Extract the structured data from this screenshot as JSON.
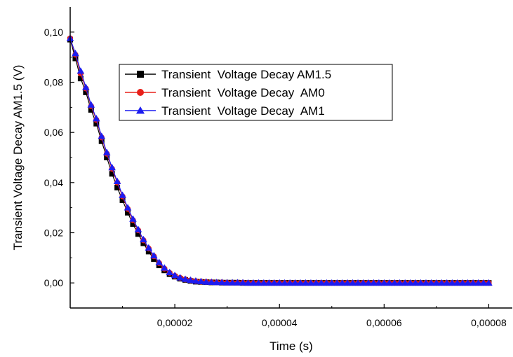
{
  "chart_data": {
    "type": "line",
    "title": "",
    "xlabel": "Time (s)",
    "ylabel": "Transient Voltage Decay AM1.5 (V)",
    "xlim": [
      0,
      8.45e-05
    ],
    "ylim": [
      -0.01,
      0.11
    ],
    "x_ticks": [
      {
        "value": 2e-05,
        "label": "0,00002"
      },
      {
        "value": 4e-05,
        "label": "0,00004"
      },
      {
        "value": 6e-05,
        "label": "0,00006"
      },
      {
        "value": 8e-05,
        "label": "0,00008"
      }
    ],
    "y_ticks": [
      {
        "value": 0.0,
        "label": "0,00"
      },
      {
        "value": 0.02,
        "label": "0,02"
      },
      {
        "value": 0.04,
        "label": "0,04"
      },
      {
        "value": 0.06,
        "label": "0,06"
      },
      {
        "value": 0.08,
        "label": "0,08"
      },
      {
        "value": 0.1,
        "label": "0,10"
      }
    ],
    "grid": false,
    "legend_position": "top-center",
    "series": [
      {
        "name": "Transient  Voltage Decay AM1.5",
        "color": "#000000",
        "marker": "square",
        "x": [
          0.0,
          1e-06,
          2e-06,
          3e-06,
          4e-06,
          5e-06,
          6e-06,
          7e-06,
          8e-06,
          9e-06,
          1e-05,
          1.1e-05,
          1.2e-05,
          1.3e-05,
          1.4e-05,
          1.5e-05,
          1.6e-05,
          1.7e-05,
          1.8e-05,
          1.9e-05,
          2e-05,
          2.1e-05,
          2.2e-05,
          2.3e-05,
          2.4e-05,
          2.5e-05,
          2.6e-05,
          2.7e-05,
          2.8e-05,
          2.9e-05,
          3e-05,
          3.1e-05,
          3.2e-05,
          3.3e-05,
          3.4e-05,
          3.5e-05,
          3.6e-05,
          3.7e-05,
          3.8e-05,
          3.9e-05,
          4e-05,
          4.1e-05,
          4.2e-05,
          4.3e-05,
          4.4e-05,
          4.5e-05,
          4.6e-05,
          4.7e-05,
          4.8e-05,
          4.9e-05,
          5e-05,
          5.1e-05,
          5.2e-05,
          5.3e-05,
          5.4e-05,
          5.5e-05,
          5.6e-05,
          5.7e-05,
          5.8e-05,
          5.9e-05,
          6e-05,
          6.1e-05,
          6.2e-05,
          6.3e-05,
          6.4e-05,
          6.5e-05,
          6.6e-05,
          6.7e-05,
          6.8e-05,
          6.9e-05,
          7e-05,
          7.1e-05,
          7.2e-05,
          7.3e-05,
          7.4e-05,
          7.5e-05,
          7.6e-05,
          7.7e-05,
          7.8e-05,
          7.9e-05,
          8e-05
        ],
        "y": [
          0.097,
          0.0895,
          0.0815,
          0.076,
          0.069,
          0.0635,
          0.0565,
          0.05,
          0.0435,
          0.038,
          0.033,
          0.028,
          0.0235,
          0.0195,
          0.0158,
          0.0125,
          0.0095,
          0.007,
          0.005,
          0.0035,
          0.0025,
          0.0017,
          0.0012,
          0.0008,
          0.0005,
          0.0004,
          0.0003,
          0.0002,
          0.0002,
          0.0001,
          0.0001,
          0.0001,
          0.0001,
          0.0,
          0.0,
          0.0,
          0.0,
          0.0,
          0.0,
          0.0,
          0.0,
          0.0,
          0.0,
          0.0,
          0.0,
          0.0,
          0.0,
          0.0,
          0.0,
          0.0,
          0.0,
          0.0,
          0.0,
          0.0,
          0.0,
          0.0,
          0.0,
          0.0,
          0.0,
          0.0,
          0.0,
          0.0,
          0.0,
          0.0,
          0.0,
          0.0,
          0.0,
          0.0,
          0.0,
          0.0,
          0.0,
          0.0,
          0.0,
          0.0,
          0.0,
          0.0,
          0.0,
          0.0,
          0.0,
          0.0,
          0.0
        ]
      },
      {
        "name": "Transient  Voltage Decay  AM0",
        "color": "#e8201a",
        "marker": "circle",
        "x": [
          0.0,
          1e-06,
          2e-06,
          3e-06,
          4e-06,
          5e-06,
          6e-06,
          7e-06,
          8e-06,
          9e-06,
          1e-05,
          1.1e-05,
          1.2e-05,
          1.3e-05,
          1.4e-05,
          1.5e-05,
          1.6e-05,
          1.7e-05,
          1.8e-05,
          1.9e-05,
          2e-05,
          2.1e-05,
          2.2e-05,
          2.3e-05,
          2.4e-05,
          2.5e-05,
          2.6e-05,
          2.7e-05,
          2.8e-05,
          2.9e-05,
          3e-05,
          3.1e-05,
          3.2e-05,
          3.3e-05,
          3.4e-05,
          3.5e-05,
          3.6e-05,
          3.7e-05,
          3.8e-05,
          3.9e-05,
          4e-05,
          4.1e-05,
          4.2e-05,
          4.3e-05,
          4.4e-05,
          4.5e-05,
          4.6e-05,
          4.7e-05,
          4.8e-05,
          4.9e-05,
          5e-05,
          5.1e-05,
          5.2e-05,
          5.3e-05,
          5.4e-05,
          5.5e-05,
          5.6e-05,
          5.7e-05,
          5.8e-05,
          5.9e-05,
          6e-05,
          6.1e-05,
          6.2e-05,
          6.3e-05,
          6.4e-05,
          6.5e-05,
          6.6e-05,
          6.7e-05,
          6.8e-05,
          6.9e-05,
          7e-05,
          7.1e-05,
          7.2e-05,
          7.3e-05,
          7.4e-05,
          7.5e-05,
          7.6e-05,
          7.7e-05,
          7.8e-05,
          7.9e-05,
          8e-05
        ],
        "y": [
          0.0975,
          0.091,
          0.0835,
          0.0775,
          0.0705,
          0.065,
          0.058,
          0.0515,
          0.0455,
          0.04,
          0.0345,
          0.0295,
          0.025,
          0.021,
          0.017,
          0.0137,
          0.0106,
          0.0079,
          0.0057,
          0.004,
          0.0028,
          0.002,
          0.0014,
          0.001,
          0.0007,
          0.0005,
          0.0004,
          0.0003,
          0.0002,
          0.0002,
          0.0001,
          0.0001,
          0.0001,
          0.0001,
          0.0,
          0.0,
          0.0,
          0.0,
          0.0,
          0.0,
          0.0,
          0.0,
          0.0,
          0.0,
          0.0,
          0.0,
          0.0,
          0.0,
          0.0,
          0.0,
          0.0,
          0.0,
          0.0,
          0.0,
          0.0,
          0.0,
          0.0,
          0.0,
          0.0,
          0.0,
          0.0,
          0.0,
          0.0,
          0.0,
          0.0,
          0.0,
          0.0,
          0.0,
          0.0,
          0.0,
          0.0,
          0.0,
          0.0,
          0.0,
          0.0,
          0.0,
          0.0,
          0.0,
          0.0,
          0.0,
          0.0
        ]
      },
      {
        "name": "Transient  Voltage Decay  AM1",
        "color": "#1c1cf0",
        "marker": "triangle",
        "x": [
          0.0,
          1e-06,
          2e-06,
          3e-06,
          4e-06,
          5e-06,
          6e-06,
          7e-06,
          8e-06,
          9e-06,
          1e-05,
          1.1e-05,
          1.2e-05,
          1.3e-05,
          1.4e-05,
          1.5e-05,
          1.6e-05,
          1.7e-05,
          1.8e-05,
          1.9e-05,
          2e-05,
          2.1e-05,
          2.2e-05,
          2.3e-05,
          2.4e-05,
          2.5e-05,
          2.6e-05,
          2.7e-05,
          2.8e-05,
          2.9e-05,
          3e-05,
          3.1e-05,
          3.2e-05,
          3.3e-05,
          3.4e-05,
          3.5e-05,
          3.6e-05,
          3.7e-05,
          3.8e-05,
          3.9e-05,
          4e-05,
          4.1e-05,
          4.2e-05,
          4.3e-05,
          4.4e-05,
          4.5e-05,
          4.6e-05,
          4.7e-05,
          4.8e-05,
          4.9e-05,
          5e-05,
          5.1e-05,
          5.2e-05,
          5.3e-05,
          5.4e-05,
          5.5e-05,
          5.6e-05,
          5.7e-05,
          5.8e-05,
          5.9e-05,
          6e-05,
          6.1e-05,
          6.2e-05,
          6.3e-05,
          6.4e-05,
          6.5e-05,
          6.6e-05,
          6.7e-05,
          6.8e-05,
          6.9e-05,
          7e-05,
          7.1e-05,
          7.2e-05,
          7.3e-05,
          7.4e-05,
          7.5e-05,
          7.6e-05,
          7.7e-05,
          7.8e-05,
          7.9e-05,
          8e-05
        ],
        "y": [
          0.0975,
          0.0915,
          0.0845,
          0.078,
          0.071,
          0.0655,
          0.0585,
          0.052,
          0.046,
          0.0405,
          0.035,
          0.03,
          0.0255,
          0.0213,
          0.0173,
          0.014,
          0.0109,
          0.0082,
          0.006,
          0.0042,
          0.003,
          0.0021,
          0.0015,
          0.0011,
          0.0008,
          0.0006,
          0.0004,
          0.0003,
          0.0002,
          0.0002,
          0.0001,
          0.0001,
          0.0001,
          0.0001,
          0.0,
          0.0,
          0.0,
          0.0,
          0.0,
          0.0,
          0.0,
          0.0,
          0.0,
          0.0,
          0.0,
          0.0,
          0.0,
          0.0,
          0.0,
          0.0,
          0.0,
          0.0,
          0.0,
          0.0,
          0.0,
          0.0,
          0.0,
          0.0,
          0.0,
          0.0,
          0.0,
          0.0,
          0.0,
          0.0,
          0.0,
          0.0,
          0.0,
          0.0,
          0.0,
          0.0,
          0.0,
          0.0,
          0.0,
          0.0,
          0.0,
          0.0,
          0.0,
          0.0,
          0.0,
          0.0,
          0.0
        ]
      }
    ]
  }
}
